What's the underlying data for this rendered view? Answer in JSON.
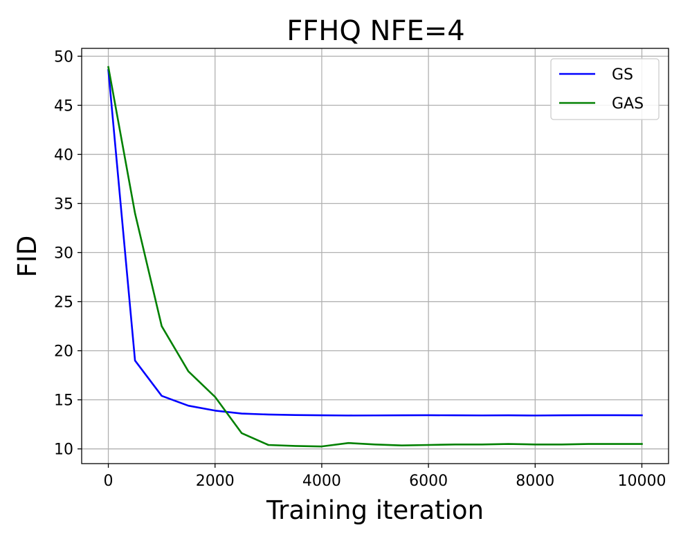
{
  "chart_data": {
    "type": "line",
    "title": "FFHQ NFE=4",
    "xlabel": "Training iteration",
    "ylabel": "FID",
    "xlim": [
      -500,
      10500
    ],
    "ylim": [
      8.5,
      50.8
    ],
    "xticks": [
      0,
      2000,
      4000,
      6000,
      8000,
      10000
    ],
    "yticks": [
      10,
      15,
      20,
      25,
      30,
      35,
      40,
      45,
      50
    ],
    "grid": true,
    "legend_position": "top-right",
    "series": [
      {
        "name": "GS",
        "color": "#0000ff",
        "x": [
          0,
          500,
          1000,
          1500,
          2000,
          2500,
          3000,
          3500,
          4000,
          4500,
          5000,
          5500,
          6000,
          6500,
          7000,
          7500,
          8000,
          8500,
          9000,
          9500,
          10000
        ],
        "y": [
          48.6,
          19.0,
          15.4,
          14.4,
          13.9,
          13.6,
          13.5,
          13.45,
          13.42,
          13.4,
          13.41,
          13.42,
          13.43,
          13.42,
          13.41,
          13.42,
          13.4,
          13.42,
          13.43,
          13.43,
          13.42
        ]
      },
      {
        "name": "GAS",
        "color": "#008000",
        "x": [
          0,
          500,
          1000,
          1500,
          2000,
          2500,
          3000,
          3500,
          4000,
          4500,
          5000,
          5500,
          6000,
          6500,
          7000,
          7500,
          8000,
          8500,
          9000,
          9500,
          10000
        ],
        "y": [
          48.9,
          34.0,
          22.5,
          17.9,
          15.3,
          11.6,
          10.4,
          10.3,
          10.25,
          10.6,
          10.45,
          10.35,
          10.4,
          10.45,
          10.45,
          10.5,
          10.45,
          10.45,
          10.5,
          10.5,
          10.5
        ]
      }
    ]
  }
}
